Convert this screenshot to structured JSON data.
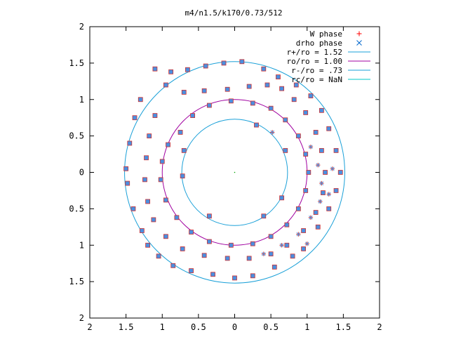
{
  "chart_data": {
    "type": "scatter",
    "title": "m4/n1.5/k170/0.73/512",
    "xlim": [
      -2,
      2
    ],
    "ylim": [
      -2,
      2
    ],
    "x_ticks": [
      {
        "value": -2,
        "label": "2"
      },
      {
        "value": -1.5,
        "label": "1.5"
      },
      {
        "value": -1,
        "label": "1"
      },
      {
        "value": -0.5,
        "label": "0.5"
      },
      {
        "value": 0,
        "label": "0"
      },
      {
        "value": 0.5,
        "label": "0.5"
      },
      {
        "value": 1,
        "label": "1"
      },
      {
        "value": 1.5,
        "label": "1.5"
      },
      {
        "value": 2,
        "label": "2"
      }
    ],
    "y_ticks": [
      {
        "value": 2,
        "label": "2"
      },
      {
        "value": 1.5,
        "label": "1.5"
      },
      {
        "value": 1,
        "label": "1"
      },
      {
        "value": 0.5,
        "label": "0.5"
      },
      {
        "value": 0,
        "label": "0"
      },
      {
        "value": -0.5,
        "label": "0.5"
      },
      {
        "value": -1,
        "label": "1"
      },
      {
        "value": -1.5,
        "label": "1.5"
      },
      {
        "value": -2,
        "label": "2"
      }
    ],
    "legend_position": "top-right",
    "legend": [
      {
        "label": "W phase",
        "kind": "point",
        "symbol": "+",
        "color": "#ff0000"
      },
      {
        "label": "drho phase",
        "kind": "point",
        "symbol": "x",
        "color": "#0066cc"
      },
      {
        "label": "r+/ro = 1.52",
        "kind": "line",
        "color": "#1aa0d8"
      },
      {
        "label": "ro/ro = 1.00",
        "kind": "line",
        "color": "#a000a0"
      },
      {
        "label": "r-/ro = .73",
        "kind": "line",
        "color": "#1aa0d8"
      },
      {
        "label": "rc/ro = NaN",
        "kind": "line",
        "color": "#00c8c8"
      }
    ],
    "circles": [
      {
        "name": "r+/ro = 1.52",
        "r": 1.52,
        "color": "#1aa0d8"
      },
      {
        "name": "ro/ro = 1.00",
        "r": 1.0,
        "color": "#a000a0"
      },
      {
        "name": "r-/ro = .73",
        "r": 0.73,
        "color": "#1aa0d8"
      }
    ],
    "point_style": {
      "fill": "#4a8fe0",
      "edge": "#d03030"
    },
    "series": [
      {
        "name": "W phase",
        "shape": "square",
        "points": [
          [
            -1.1,
            1.42
          ],
          [
            -0.88,
            1.38
          ],
          [
            -0.65,
            1.41
          ],
          [
            -0.4,
            1.46
          ],
          [
            -0.15,
            1.5
          ],
          [
            0.1,
            1.52
          ],
          [
            0.4,
            1.42
          ],
          [
            0.6,
            1.31
          ],
          [
            0.85,
            1.2
          ],
          [
            1.05,
            1.05
          ],
          [
            1.2,
            0.85
          ],
          [
            1.3,
            0.6
          ],
          [
            1.4,
            0.3
          ],
          [
            1.46,
            0.0
          ],
          [
            1.4,
            -0.25
          ],
          [
            1.3,
            -0.5
          ],
          [
            1.15,
            -0.75
          ],
          [
            0.95,
            -1.05
          ],
          [
            -1.3,
            1.0
          ],
          [
            -1.38,
            0.75
          ],
          [
            -1.45,
            0.4
          ],
          [
            -1.5,
            0.05
          ],
          [
            -1.48,
            -0.15
          ],
          [
            -1.4,
            -0.5
          ],
          [
            -1.28,
            -0.8
          ],
          [
            -1.2,
            -1.0
          ],
          [
            -1.05,
            -1.15
          ],
          [
            -0.85,
            -1.28
          ],
          [
            -0.6,
            -1.35
          ],
          [
            -0.3,
            -1.4
          ],
          [
            0.0,
            -1.45
          ],
          [
            0.25,
            -1.42
          ],
          [
            0.55,
            -1.3
          ],
          [
            0.8,
            -1.15
          ],
          [
            -0.95,
            1.2
          ],
          [
            -0.7,
            1.1
          ],
          [
            -0.42,
            1.12
          ],
          [
            -0.1,
            1.14
          ],
          [
            0.2,
            1.18
          ],
          [
            0.45,
            1.2
          ],
          [
            0.65,
            1.15
          ],
          [
            0.82,
            1.0
          ],
          [
            0.98,
            0.82
          ],
          [
            1.12,
            0.55
          ],
          [
            1.2,
            0.3
          ],
          [
            1.25,
            0.0
          ],
          [
            1.22,
            -0.28
          ],
          [
            1.12,
            -0.55
          ],
          [
            0.95,
            -0.8
          ],
          [
            0.72,
            -1.0
          ],
          [
            0.5,
            -1.12
          ],
          [
            0.2,
            -1.18
          ],
          [
            -0.1,
            -1.18
          ],
          [
            -0.42,
            -1.14
          ],
          [
            -0.72,
            -1.05
          ],
          [
            -0.95,
            -0.88
          ],
          [
            -1.12,
            -0.65
          ],
          [
            -1.2,
            -0.4
          ],
          [
            -1.24,
            -0.1
          ],
          [
            -1.22,
            0.2
          ],
          [
            -1.18,
            0.5
          ],
          [
            -1.1,
            0.78
          ],
          [
            -0.75,
            0.55
          ],
          [
            -0.58,
            0.78
          ],
          [
            -0.35,
            0.92
          ],
          [
            -0.05,
            0.98
          ],
          [
            0.25,
            0.95
          ],
          [
            0.5,
            0.88
          ],
          [
            0.7,
            0.72
          ],
          [
            0.88,
            0.5
          ],
          [
            0.98,
            0.25
          ],
          [
            1.02,
            0.0
          ],
          [
            0.98,
            -0.25
          ],
          [
            0.88,
            -0.5
          ],
          [
            0.72,
            -0.72
          ],
          [
            0.5,
            -0.88
          ],
          [
            0.25,
            -0.98
          ],
          [
            -0.05,
            -1.0
          ],
          [
            -0.35,
            -0.95
          ],
          [
            -0.6,
            -0.82
          ],
          [
            -0.8,
            -0.62
          ],
          [
            -0.95,
            -0.38
          ],
          [
            -1.02,
            -0.1
          ],
          [
            -1.0,
            0.15
          ],
          [
            -0.92,
            0.38
          ],
          [
            -0.72,
            -0.05
          ],
          [
            -0.7,
            0.3
          ],
          [
            0.3,
            0.65
          ],
          [
            0.7,
            0.3
          ],
          [
            0.65,
            -0.35
          ],
          [
            0.4,
            -0.6
          ],
          [
            -0.35,
            -0.6
          ]
        ]
      },
      {
        "name": "drho phase",
        "shape": "star",
        "points": [
          [
            1.05,
            0.35
          ],
          [
            1.15,
            0.1
          ],
          [
            1.2,
            -0.15
          ],
          [
            1.18,
            -0.4
          ],
          [
            1.05,
            -0.62
          ],
          [
            0.88,
            -0.85
          ],
          [
            0.65,
            -1.0
          ],
          [
            0.4,
            -1.12
          ],
          [
            1.35,
            0.05
          ],
          [
            1.3,
            -0.3
          ],
          [
            1.0,
            -0.98
          ],
          [
            0.52,
            0.55
          ]
        ]
      }
    ]
  }
}
